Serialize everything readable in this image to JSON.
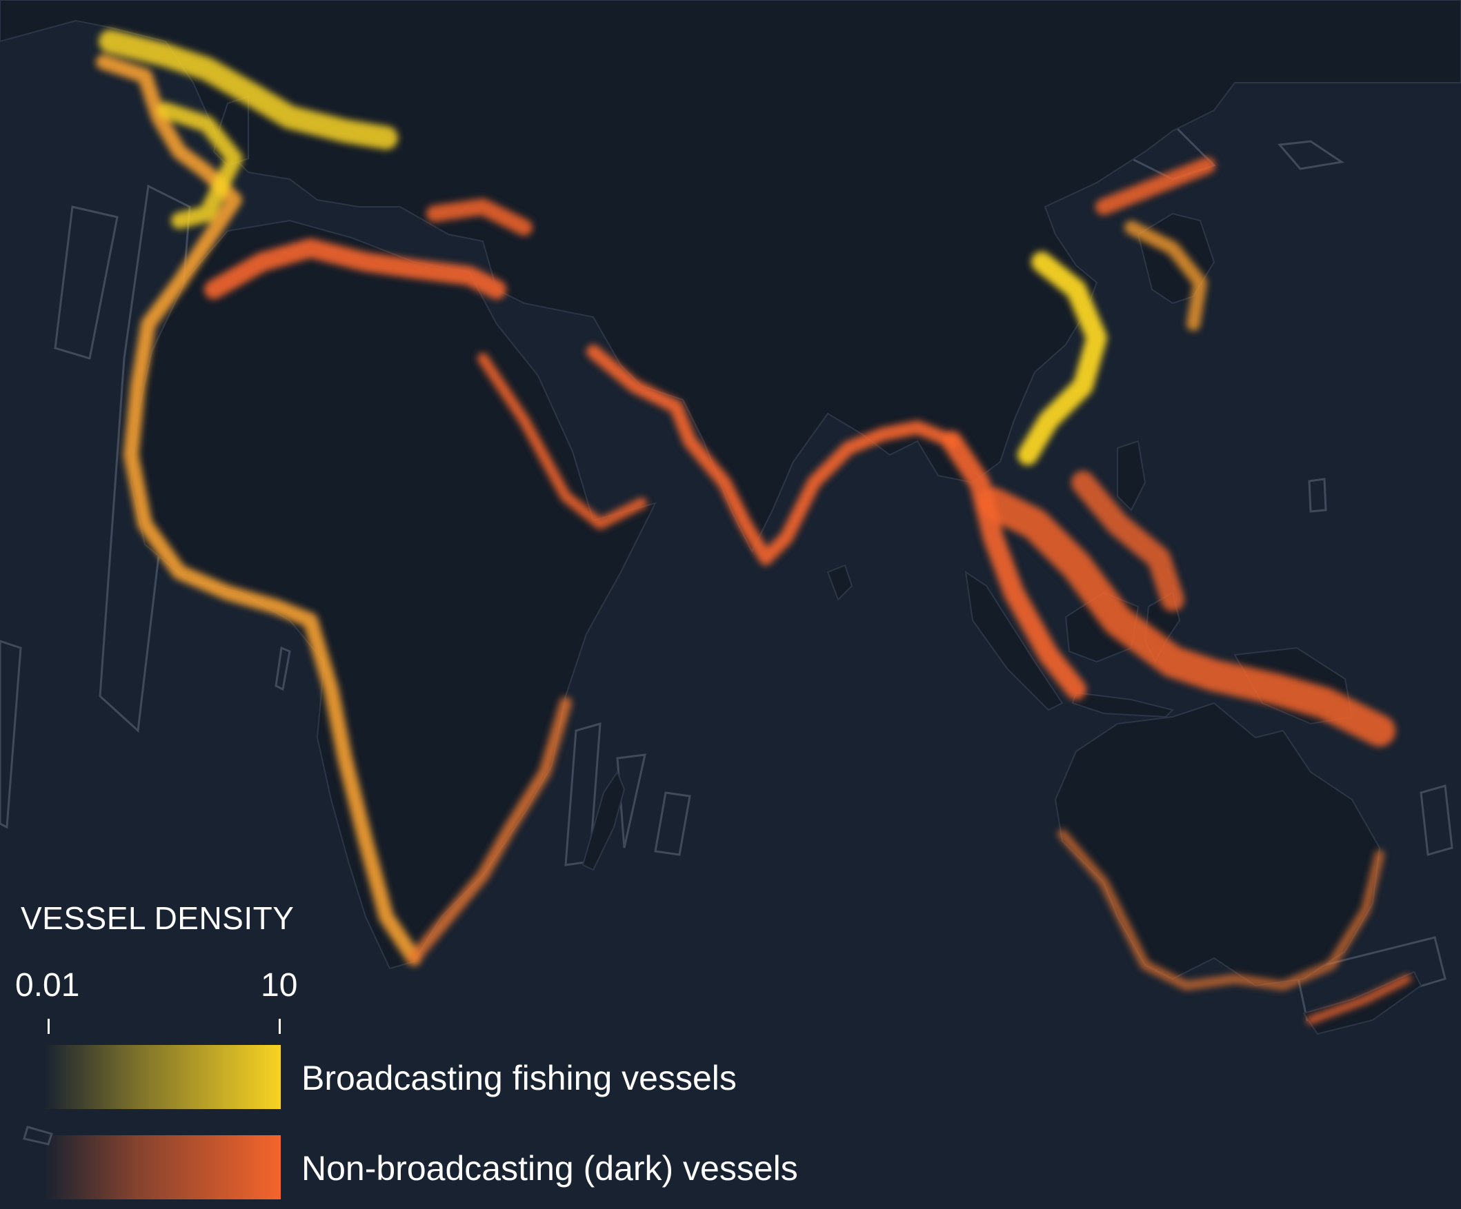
{
  "legend": {
    "title": "VESSEL DENSITY",
    "scale_min": "0.01",
    "scale_max": "10",
    "series": [
      {
        "name": "Broadcasting fishing vessels",
        "color": "#f9d423"
      },
      {
        "name": "Non-broadcasting (dark) vessels",
        "color": "#f5652c"
      }
    ]
  },
  "colors": {
    "ocean": "#182231",
    "land": "#141c28",
    "coverage_outline": "#4a5566",
    "fishing": "#f9d423",
    "dark": "#f5652c"
  }
}
